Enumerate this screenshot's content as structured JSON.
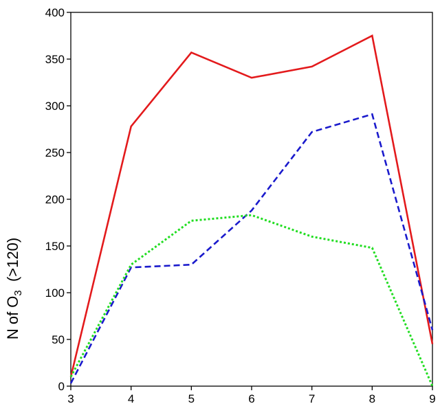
{
  "chart_data": {
    "type": "line",
    "title": "",
    "xlabel": "",
    "ylabel": "N of O3  (>120)",
    "ylabel_main": "N of O",
    "ylabel_sub": "3",
    "ylabel_tail": "  (>120)",
    "x": [
      3,
      4,
      5,
      6,
      7,
      8,
      9
    ],
    "xlim": [
      3,
      9
    ],
    "ylim": [
      0,
      400
    ],
    "yticks": [
      0,
      50,
      100,
      150,
      200,
      250,
      300,
      350,
      400
    ],
    "xticks": [
      3,
      4,
      5,
      6,
      7,
      8,
      9
    ],
    "grid": false,
    "series": [
      {
        "values": [
          10,
          278,
          357,
          330,
          342,
          375,
          45
        ],
        "color": "#e31a1c",
        "dash": "solid"
      },
      {
        "values": [
          3,
          127,
          130,
          188,
          272,
          291,
          60
        ],
        "color": "#1a1acc",
        "dash": "dashed"
      },
      {
        "values": [
          10,
          130,
          177,
          183,
          160,
          148,
          0
        ],
        "color": "#22dd22",
        "dash": "dotted"
      }
    ]
  }
}
